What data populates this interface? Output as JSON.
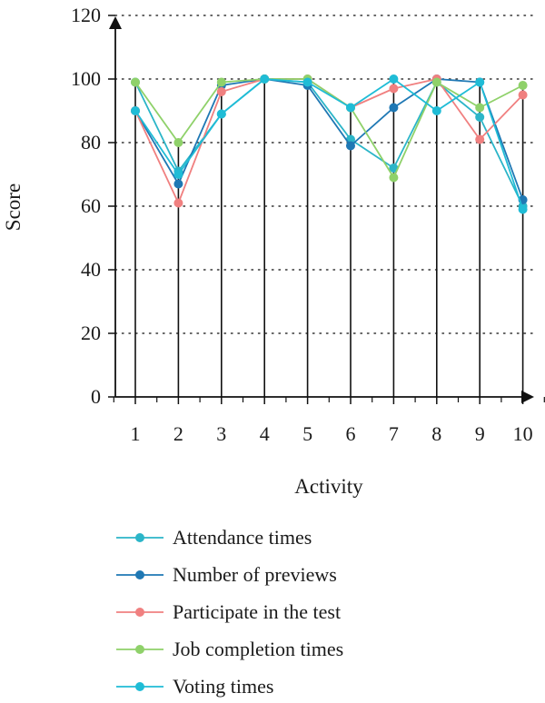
{
  "chart_data": {
    "type": "line",
    "xlabel": "Activity",
    "ylabel": "Score",
    "categories": [
      "1",
      "2",
      "3",
      "4",
      "5",
      "6",
      "7",
      "8",
      "9",
      "10"
    ],
    "y_ticks": [
      "0",
      "20",
      "40",
      "60",
      "80",
      "100",
      "120"
    ],
    "ylim": [
      0,
      120
    ],
    "grid": "horizontal dotted",
    "legend_position": "bottom",
    "series": [
      {
        "name": "Attendance times",
        "color": "#2bb5c8",
        "values": [
          99,
          71,
          89,
          100,
          99,
          81,
          72,
          99,
          88,
          60
        ]
      },
      {
        "name": "Number of previews",
        "color": "#1f78b4",
        "values": [
          90,
          67,
          98,
          100,
          98,
          79,
          91,
          100,
          99,
          62
        ]
      },
      {
        "name": "Participate in the test",
        "color": "#f08080",
        "values": [
          90,
          61,
          96,
          100,
          100,
          91,
          97,
          100,
          81,
          95
        ]
      },
      {
        "name": "Job completion times",
        "color": "#8fd16a",
        "values": [
          99,
          80,
          99,
          100,
          100,
          91,
          69,
          99,
          91,
          98
        ]
      },
      {
        "name": "Voting times",
        "color": "#1fbcd6",
        "values": [
          90,
          70,
          89,
          100,
          99,
          91,
          100,
          90,
          99,
          59
        ]
      }
    ]
  }
}
